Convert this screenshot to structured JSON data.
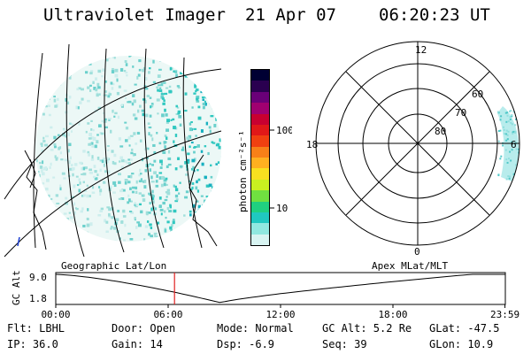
{
  "header": {
    "instrument": "Ultraviolet Imager",
    "date": "21 Apr 07",
    "time": "06:20:23 UT"
  },
  "colorbar": {
    "unit_label": "photon cm⁻²s⁻¹",
    "ticks": [
      "100",
      "10"
    ],
    "colors": [
      "#000033",
      "#2a0050",
      "#6a0078",
      "#a00070",
      "#c80030",
      "#e01818",
      "#f04010",
      "#f88018",
      "#ffb020",
      "#f8e020",
      "#c8f020",
      "#70e040",
      "#20d080",
      "#20c8c0",
      "#90e8e0",
      "#d8f4f2"
    ]
  },
  "left_map": {
    "label": "Geographic Lat/Lon",
    "emission_color": "#30c8c0"
  },
  "right_map": {
    "label": "Apex  MLat/MLT",
    "mlt_labels": {
      "top": "12",
      "left": "18",
      "right": "6",
      "bottom": "0"
    },
    "lat_labels": [
      "60",
      "70",
      "80"
    ]
  },
  "timeline": {
    "ylabel": "GC Alt",
    "ticks_y": [
      "9.0",
      "1.8"
    ],
    "ticks_x": [
      "00:00",
      "06:00",
      "12:00",
      "18:00",
      "23:59"
    ],
    "current_time_marker_hours": 6.34,
    "marker_color": "#e02020"
  },
  "info": {
    "flt": "Flt: LBHL",
    "ip": "IP: 36.0",
    "door": "Door: Open",
    "gain": "Gain: 14",
    "mode": "Mode: Normal",
    "dsp": "Dsp:    -6.9",
    "gcalt": "GC Alt: 5.2 Re",
    "seq": "Seq: 39",
    "glat": "GLat:  -47.5",
    "glon": "GLon:   10.9"
  }
}
